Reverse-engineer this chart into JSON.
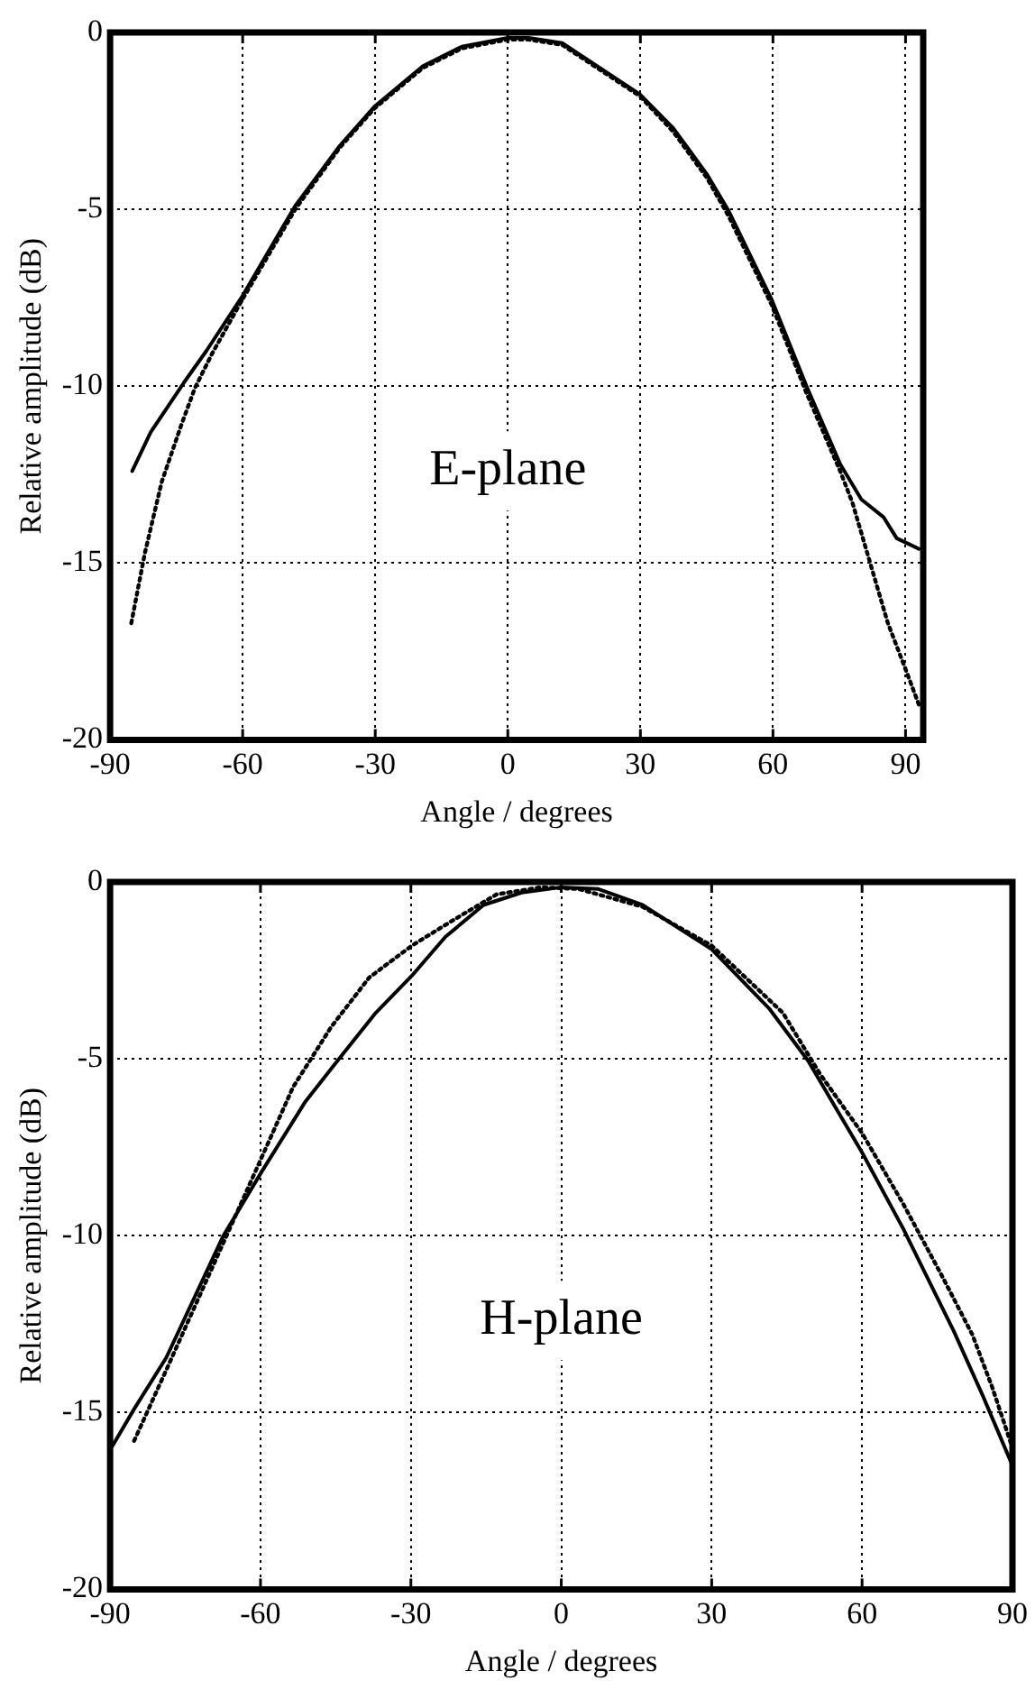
{
  "chart_data": [
    {
      "type": "line",
      "xlabel": "Angle / degrees",
      "ylabel": "Relative amplitude (dB)",
      "xlim": [
        -90,
        94
      ],
      "xticks": [
        -90,
        -60,
        -30,
        0,
        30,
        60,
        90
      ],
      "ylim": [
        -20,
        0
      ],
      "yticks": [
        -20,
        -15,
        -10,
        -5,
        0
      ],
      "grid": true,
      "marker": "none",
      "annotations": [
        "E-plane"
      ],
      "series": [
        {
          "color": "#000000",
          "line_style": "solid",
          "x": [
            -85,
            -80.8,
            -73.3,
            -68.2,
            -60.3,
            -48.1,
            -38,
            -30.2,
            -19.2,
            -10.4,
            0,
            4.7,
            12.3,
            29.9,
            37.4,
            45,
            50,
            59.7,
            67.6,
            75.2,
            80,
            85,
            88,
            93
          ],
          "values": [
            -12.4,
            -11.3,
            -9.9,
            -9,
            -7.5,
            -4.9,
            -3.2,
            -2.1,
            -0.95,
            -0.4,
            -0.15,
            -0.15,
            -0.3,
            -1.75,
            -2.7,
            -4,
            -5.05,
            -7.55,
            -10,
            -12.2,
            -13.2,
            -13.7,
            -14.3,
            -14.6
          ]
        },
        {
          "color": "#000000",
          "line_style": "dotted",
          "x": [
            -85.2,
            -82.1,
            -78.3,
            -73.9,
            -70.8,
            -67,
            -60.3,
            -48.1,
            -38,
            -30.2,
            -19.2,
            -10.4,
            0,
            4.7,
            12.3,
            29.9,
            37.4,
            45,
            50,
            59.7,
            67.6,
            75.2,
            78,
            82,
            86,
            90,
            93
          ],
          "values": [
            -16.7,
            -14.7,
            -12.7,
            -11.1,
            -10.05,
            -9.1,
            -7.6,
            -5,
            -3.25,
            -2.15,
            -1,
            -0.45,
            -0.2,
            -0.2,
            -0.35,
            -1.8,
            -2.8,
            -4.1,
            -5.2,
            -7.7,
            -10.2,
            -12.4,
            -13.3,
            -15,
            -16.7,
            -18,
            -19
          ]
        }
      ]
    },
    {
      "type": "line",
      "xlabel": "Angle / degrees",
      "ylabel": "Relative amplitude (dB)",
      "xlim": [
        -90,
        90
      ],
      "xticks": [
        -90,
        -60,
        -30,
        0,
        30,
        60,
        90
      ],
      "ylim": [
        -20,
        0
      ],
      "yticks": [
        -20,
        -15,
        -10,
        -5,
        0
      ],
      "grid": true,
      "marker": "none",
      "annotations": [
        "H-plane"
      ],
      "series": [
        {
          "color": "#000000",
          "line_style": "solid",
          "x": [
            -89.6,
            -85.2,
            -78.8,
            -67.4,
            -59.8,
            -51,
            -44.6,
            -37,
            -29.8,
            -23.1,
            -15.5,
            -7.9,
            0,
            7.4,
            16.2,
            30,
            41.6,
            49.2,
            60,
            68.2,
            78.3,
            84,
            90
          ],
          "values": [
            -15.96,
            -14.9,
            -13.45,
            -10,
            -8.2,
            -6.2,
            -5.05,
            -3.7,
            -2.65,
            -1.55,
            -0.65,
            -0.3,
            -0.15,
            -0.2,
            -0.65,
            -1.9,
            -3.6,
            -5.05,
            -7.65,
            -9.8,
            -12.7,
            -14.5,
            -16.5
          ]
        },
        {
          "color": "#000000",
          "line_style": "dotted",
          "x": [
            -85.2,
            -78.8,
            -67.4,
            -59.8,
            -53.5,
            -45.9,
            -38.3,
            -29.8,
            -21.8,
            -12.9,
            -4,
            3.5,
            16.2,
            30,
            44.2,
            51.7,
            60,
            68.2,
            75.8,
            82,
            86,
            90
          ],
          "values": [
            -15.8,
            -13.8,
            -10.2,
            -7.8,
            -5.8,
            -4.1,
            -2.7,
            -1.8,
            -1.1,
            -0.35,
            -0.15,
            -0.2,
            -0.7,
            -1.8,
            -3.7,
            -5.45,
            -7.1,
            -9.1,
            -11.1,
            -12.8,
            -14.3,
            -16
          ]
        }
      ]
    }
  ]
}
